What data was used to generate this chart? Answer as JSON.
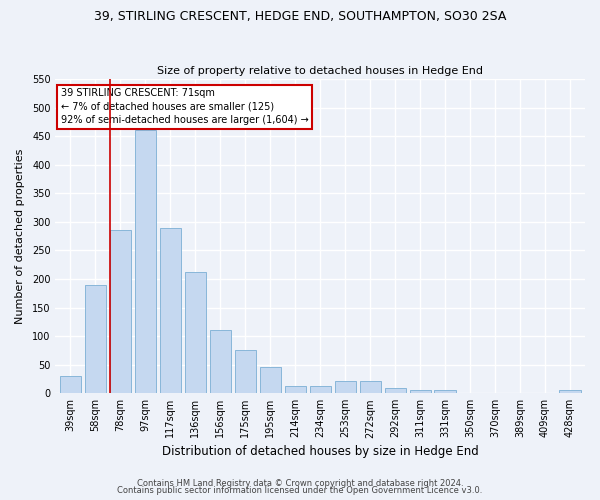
{
  "title": "39, STIRLING CRESCENT, HEDGE END, SOUTHAMPTON, SO30 2SA",
  "subtitle": "Size of property relative to detached houses in Hedge End",
  "xlabel": "Distribution of detached houses by size in Hedge End",
  "ylabel": "Number of detached properties",
  "categories": [
    "39sqm",
    "58sqm",
    "78sqm",
    "97sqm",
    "117sqm",
    "136sqm",
    "156sqm",
    "175sqm",
    "195sqm",
    "214sqm",
    "234sqm",
    "253sqm",
    "272sqm",
    "292sqm",
    "311sqm",
    "331sqm",
    "350sqm",
    "370sqm",
    "389sqm",
    "409sqm",
    "428sqm"
  ],
  "values": [
    30,
    190,
    285,
    460,
    290,
    213,
    110,
    75,
    46,
    13,
    13,
    21,
    21,
    9,
    6,
    6,
    0,
    0,
    0,
    0,
    6
  ],
  "bar_color": "#c5d8f0",
  "bar_edge_color": "#7bafd4",
  "vline_color": "#cc0000",
  "vline_x_index": 2,
  "annotation_text": "39 STIRLING CRESCENT: 71sqm\n← 7% of detached houses are smaller (125)\n92% of semi-detached houses are larger (1,604) →",
  "annotation_box_color": "#ffffff",
  "annotation_box_edge_color": "#cc0000",
  "ylim": [
    0,
    550
  ],
  "yticks": [
    0,
    50,
    100,
    150,
    200,
    250,
    300,
    350,
    400,
    450,
    500,
    550
  ],
  "footer_line1": "Contains HM Land Registry data © Crown copyright and database right 2024.",
  "footer_line2": "Contains public sector information licensed under the Open Government Licence v3.0.",
  "bg_color": "#eef2f9",
  "grid_color": "#ffffff",
  "title_fontsize": 9,
  "subtitle_fontsize": 8,
  "xlabel_fontsize": 8.5,
  "ylabel_fontsize": 8,
  "tick_fontsize": 7,
  "footer_fontsize": 6,
  "annotation_fontsize": 7
}
